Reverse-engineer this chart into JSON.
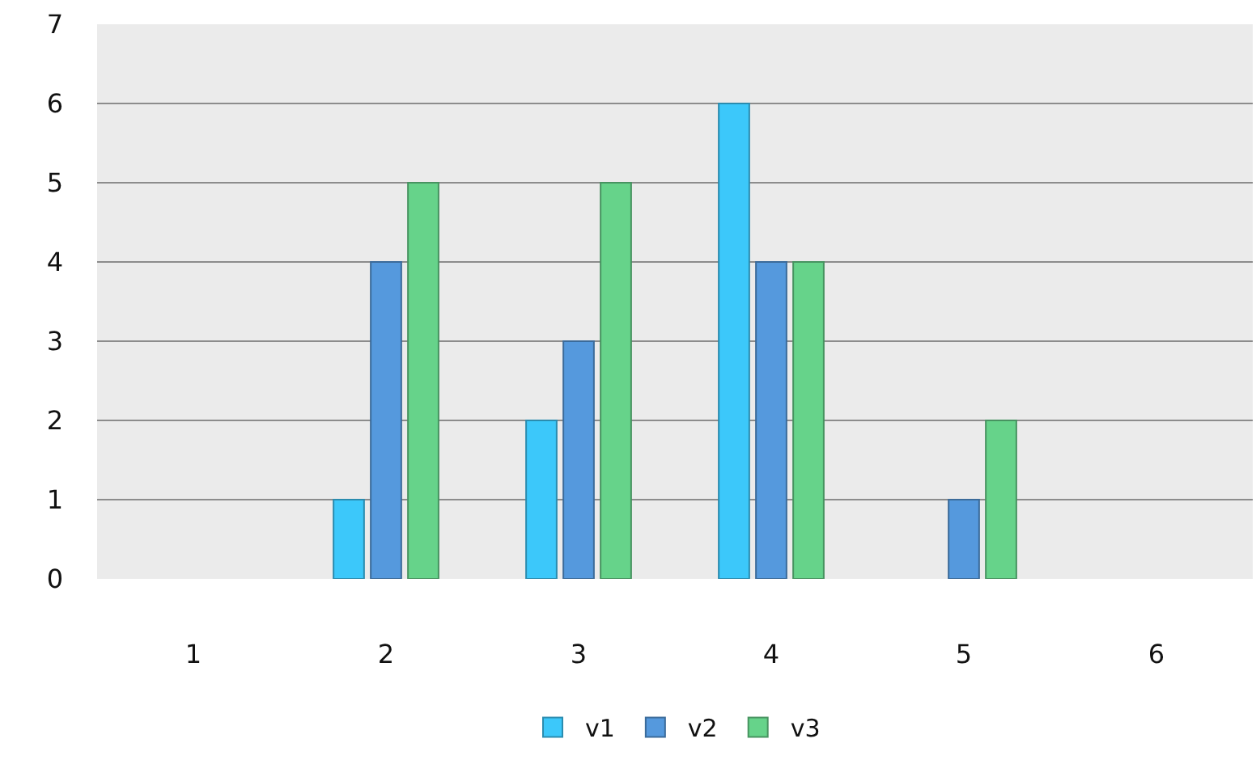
{
  "chart_data": {
    "type": "bar",
    "categories": [
      "1",
      "2",
      "3",
      "4",
      "5",
      "6"
    ],
    "series": [
      {
        "name": "v1",
        "color": "#3cc8fa",
        "values": [
          null,
          1,
          2,
          6,
          null,
          null
        ]
      },
      {
        "name": "v2",
        "color": "#5599dd",
        "values": [
          null,
          4,
          3,
          4,
          1,
          null
        ]
      },
      {
        "name": "v3",
        "color": "#66d38a",
        "values": [
          null,
          5,
          5,
          4,
          2,
          null
        ]
      }
    ],
    "ylim": [
      0,
      7
    ],
    "yticks": [
      0,
      1,
      2,
      3,
      4,
      5,
      6,
      7
    ],
    "grid": "y",
    "legend": "bottom"
  }
}
